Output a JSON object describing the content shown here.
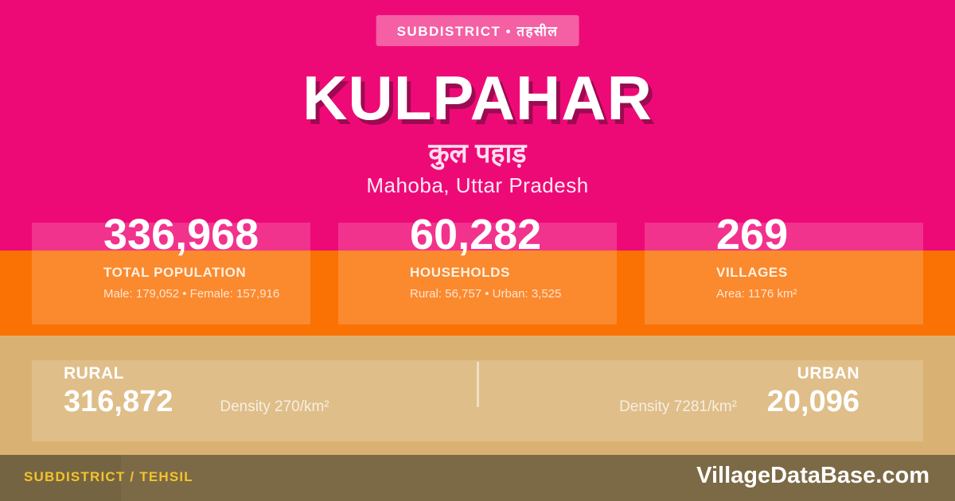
{
  "badge": {
    "label": "SUBDISTRICT • तहसील"
  },
  "header": {
    "title": "KULPAHAR",
    "subtitle_hindi": "कुल पहाड़",
    "location": "Mahoba, Uttar Pradesh"
  },
  "stats": [
    {
      "value": "336,968",
      "label": "TOTAL POPULATION",
      "detail": "Male: 179,052 • Female: 157,916"
    },
    {
      "value": "60,282",
      "label": "HOUSEHOLDS",
      "detail": "Rural: 56,757 • Urban: 3,525"
    },
    {
      "value": "269",
      "label": "VILLAGES",
      "detail": "Area: 1176 km²"
    }
  ],
  "split": {
    "rural": {
      "label": "RURAL",
      "value": "316,872",
      "density": "Density 270/km²"
    },
    "urban": {
      "label": "URBAN",
      "value": "20,096",
      "density": "Density 7281/km²"
    }
  },
  "footer": {
    "type_label": "SUBDISTRICT / TEHSIL",
    "brand": "VillageDataBase.com"
  },
  "colors": {
    "pink": "#EE0A76",
    "orange": "#FA7104",
    "tan": "#D9B273",
    "olive_footer": "#7C6A46",
    "badge_bg": "#F55FA3",
    "title_shadow": "#9C0B52",
    "footer_yellow": "#F4C32B",
    "card_overlay": "rgba(255,255,255,0.17)"
  }
}
